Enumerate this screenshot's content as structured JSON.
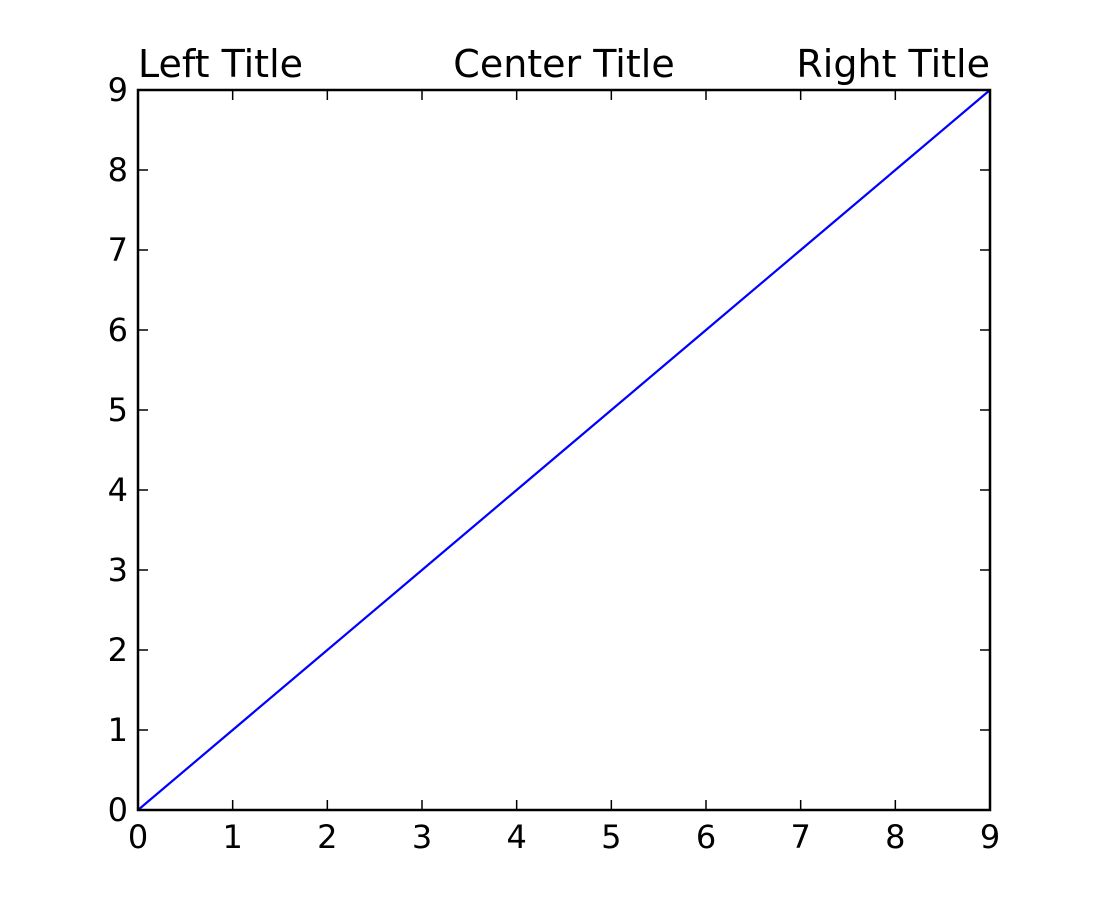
{
  "chart_data": {
    "type": "line",
    "titles": {
      "left": "Left Title",
      "center": "Center Title",
      "right": "Right Title"
    },
    "xlabel": "",
    "ylabel": "",
    "xlim": [
      0,
      9
    ],
    "ylim": [
      0,
      9
    ],
    "xticks": [
      0,
      1,
      2,
      3,
      4,
      5,
      6,
      7,
      8,
      9
    ],
    "yticks": [
      0,
      1,
      2,
      3,
      4,
      5,
      6,
      7,
      8,
      9
    ],
    "grid": false,
    "series": [
      {
        "x": [
          0,
          1,
          2,
          3,
          4,
          5,
          6,
          7,
          8,
          9
        ],
        "y": [
          0,
          1,
          2,
          3,
          4,
          5,
          6,
          7,
          8,
          9
        ],
        "color": "#0000ff"
      }
    ]
  }
}
